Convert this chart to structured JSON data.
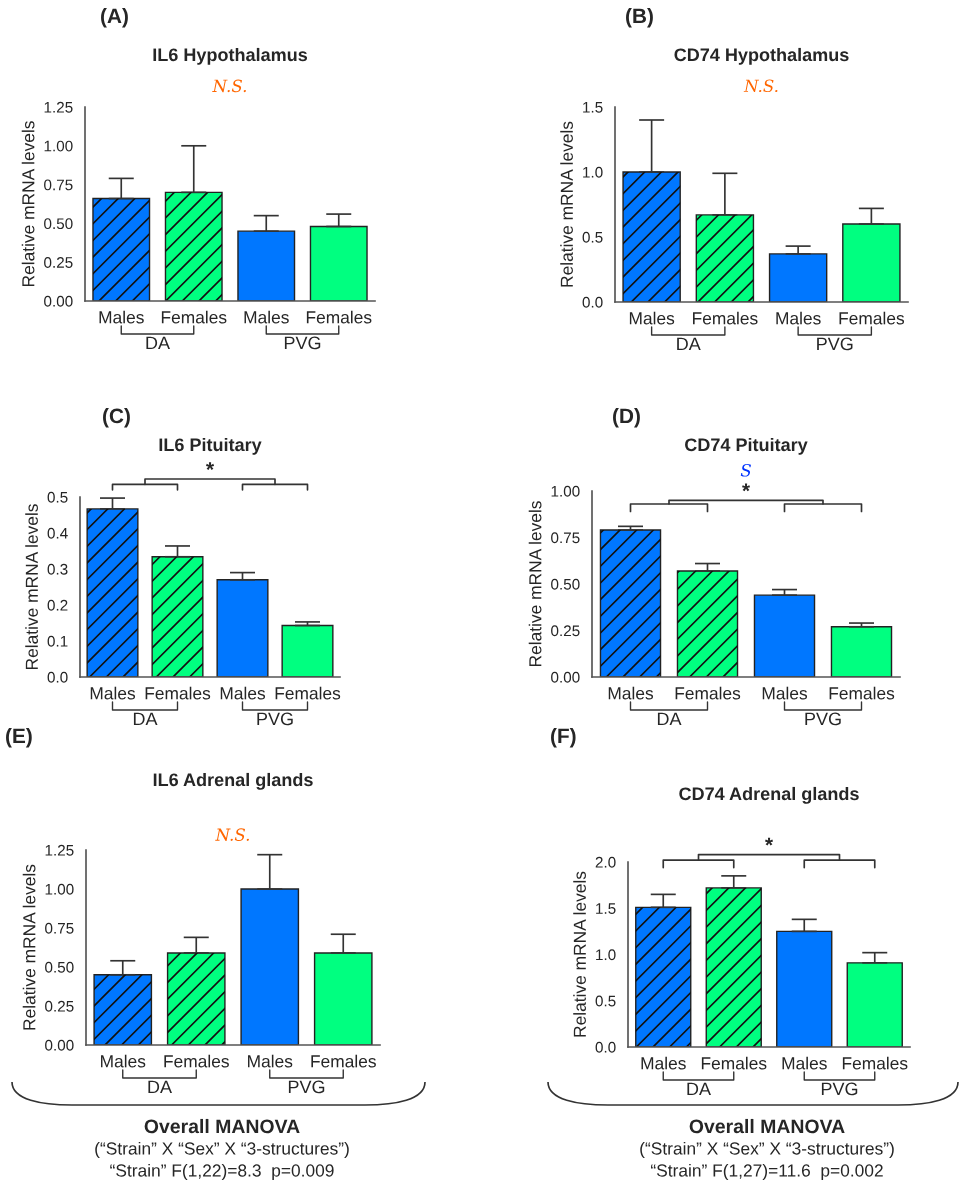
{
  "chart_data": [
    {
      "type": "bar",
      "title": "IL6 Hypothalamus",
      "ylabel": "Relative mRNA levels",
      "categories": [
        "Males",
        "Females",
        "Males",
        "Females"
      ],
      "values": [
        0.66,
        0.7,
        0.45,
        0.48
      ],
      "errors": [
        [
          0.66,
          0.79
        ],
        [
          0.7,
          1.0
        ],
        [
          0.45,
          0.55
        ],
        [
          0.48,
          0.56
        ]
      ],
      "colors": [
        "#0077ff",
        "#00ff80",
        "#0077ff",
        "#00ff80"
      ],
      "ylim": [
        0,
        1.25
      ],
      "yticks": [
        {
          "value": 0,
          "label": "0.00"
        },
        {
          "value": 0.25,
          "label": "0.25"
        },
        {
          "value": 0.5,
          "label": "0.50"
        },
        {
          "value": 0.75,
          "label": "0.75"
        },
        {
          "value": 1,
          "label": "1.00"
        },
        {
          "value": 1.25,
          "label": "1.25"
        }
      ],
      "grid": false,
      "legend": false,
      "annotations": [
        "(A)",
        "DA",
        "PVG",
        "N.S."
      ]
    },
    {
      "type": "bar",
      "title": "CD74 Hypothalamus",
      "ylabel": "Relative mRNA levels",
      "categories": [
        "Males",
        "Females",
        "Males",
        "Females"
      ],
      "values": [
        1.0,
        0.67,
        0.37,
        0.6
      ],
      "errors": [
        [
          1.0,
          1.4
        ],
        [
          0.67,
          0.99
        ],
        [
          0.37,
          0.43
        ],
        [
          0.6,
          0.72
        ]
      ],
      "colors": [
        "#0077ff",
        "#00ff80",
        "#0077ff",
        "#00ff80"
      ],
      "ylim": [
        0,
        1.5
      ],
      "yticks": [
        {
          "value": 0,
          "label": "0.0"
        },
        {
          "value": 0.5,
          "label": "0.5"
        },
        {
          "value": 1,
          "label": "1.0"
        },
        {
          "value": 1.5,
          "label": "1.5"
        }
      ],
      "grid": false,
      "legend": false,
      "annotations": [
        "(B)",
        "DA",
        "PVG",
        "N.S."
      ]
    },
    {
      "type": "bar",
      "title": "IL6 Pituitary",
      "ylabel": "Relative mRNA levels",
      "categories": [
        "Males",
        "Females",
        "Males",
        "Females"
      ],
      "values": [
        0.467,
        0.334,
        0.27,
        0.143
      ],
      "errors": [
        [
          0.467,
          0.497
        ],
        [
          0.334,
          0.364
        ],
        [
          0.27,
          0.29
        ],
        [
          0.143,
          0.153
        ]
      ],
      "colors": [
        "#0077ff",
        "#00ff80",
        "#0077ff",
        "#00ff80"
      ],
      "ylim": [
        0,
        0.5
      ],
      "yticks": [
        {
          "value": 0,
          "label": "0.0"
        },
        0.1,
        0.2,
        0.3,
        0.4,
        0.5
      ],
      "grid": false,
      "legend": false,
      "annotations": [
        "(C)",
        "DA",
        "PVG",
        "*"
      ]
    },
    {
      "type": "bar",
      "title": "CD74 Pituitary",
      "ylabel": "Relative mRNA levels",
      "categories": [
        "Males",
        "Females",
        "Males",
        "Females"
      ],
      "values": [
        0.79,
        0.57,
        0.44,
        0.27
      ],
      "errors": [
        [
          0.79,
          0.81
        ],
        [
          0.57,
          0.61
        ],
        [
          0.44,
          0.47
        ],
        [
          0.27,
          0.29
        ]
      ],
      "colors": [
        "#0077ff",
        "#00ff80",
        "#0077ff",
        "#00ff80"
      ],
      "ylim": [
        0,
        1.0
      ],
      "yticks": [
        {
          "value": 0,
          "label": "0.00"
        },
        {
          "value": 0.25,
          "label": "0.25"
        },
        {
          "value": 0.5,
          "label": "0.50"
        },
        {
          "value": 0.75,
          "label": "0.75"
        },
        {
          "value": 1,
          "label": "1.00"
        }
      ],
      "grid": false,
      "legend": false,
      "annotations": [
        "(D)",
        "DA",
        "PVG",
        "S",
        "*"
      ]
    },
    {
      "type": "bar",
      "title": "IL6 Adrenal glands",
      "ylabel": "Relative mRNA levels",
      "categories": [
        "Males",
        "Females",
        "Males",
        "Females"
      ],
      "values": [
        0.45,
        0.59,
        1.0,
        0.59
      ],
      "errors": [
        [
          0.45,
          0.54
        ],
        [
          0.59,
          0.69
        ],
        [
          1.0,
          1.22
        ],
        [
          0.59,
          0.71
        ]
      ],
      "colors": [
        "#0077ff",
        "#00ff80",
        "#0077ff",
        "#00ff80"
      ],
      "ylim": [
        0,
        1.25
      ],
      "yticks": [
        {
          "value": 0,
          "label": "0.00"
        },
        {
          "value": 0.25,
          "label": "0.25"
        },
        {
          "value": 0.5,
          "label": "0.50"
        },
        {
          "value": 0.75,
          "label": "0.75"
        },
        {
          "value": 1,
          "label": "1.00"
        },
        {
          "value": 1.25,
          "label": "1.25"
        }
      ],
      "grid": false,
      "legend": false,
      "annotations": [
        "(E)",
        "DA",
        "PVG",
        "N.S.",
        "Overall MANOVA",
        "(“Strain” X “Sex” X “3-structures”)",
        "“Strain” F(1,22)=8.3  p=0.009"
      ]
    },
    {
      "type": "bar",
      "title": "CD74 Adrenal glands",
      "ylabel": "Relative mRNA levels",
      "categories": [
        "Males",
        "Females",
        "Males",
        "Females"
      ],
      "values": [
        1.51,
        1.72,
        1.25,
        0.91
      ],
      "errors": [
        [
          1.51,
          1.65
        ],
        [
          1.72,
          1.85
        ],
        [
          1.25,
          1.38
        ],
        [
          0.91,
          1.02
        ]
      ],
      "colors": [
        "#0077ff",
        "#00ff80",
        "#0077ff",
        "#00ff80"
      ],
      "ylim": [
        0,
        2.0
      ],
      "yticks": [
        {
          "value": 0,
          "label": "0.0"
        },
        {
          "value": 0.5,
          "label": "0.5"
        },
        {
          "value": 1,
          "label": "1.0"
        },
        {
          "value": 1.5,
          "label": "1.5"
        },
        {
          "value": 2,
          "label": "2.0"
        }
      ],
      "grid": false,
      "legend": false,
      "annotations": [
        "(F)",
        "DA",
        "PVG",
        "*",
        "Overall MANOVA",
        "(“Strain” X “Sex” X “3-structures”)",
        "“Strain” F(1,27)=11.6  p=0.002"
      ]
    }
  ]
}
